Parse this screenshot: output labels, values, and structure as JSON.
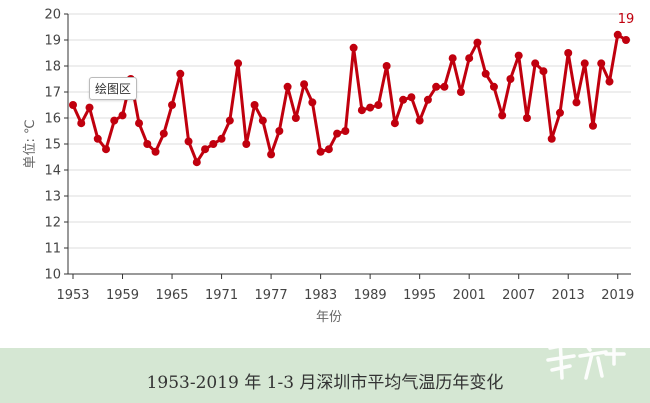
{
  "chart_data": {
    "type": "line",
    "title": "",
    "xlabel": "年份",
    "ylabel": "单位: ℃",
    "ylim": [
      10,
      20
    ],
    "yticks": [
      10,
      11,
      12,
      13,
      14,
      15,
      16,
      17,
      18,
      19,
      20
    ],
    "xticks": [
      1953,
      1959,
      1965,
      1971,
      1977,
      1983,
      1989,
      1995,
      2001,
      2007,
      2013,
      2019
    ],
    "grid": true,
    "last_value_label": "19",
    "series": [
      {
        "color": "#c0000e",
        "x": [
          1953,
          1954,
          1955,
          1956,
          1957,
          1958,
          1959,
          1960,
          1961,
          1962,
          1963,
          1964,
          1965,
          1966,
          1967,
          1968,
          1969,
          1970,
          1971,
          1972,
          1973,
          1974,
          1975,
          1976,
          1977,
          1978,
          1979,
          1980,
          1981,
          1982,
          1983,
          1984,
          1985,
          1986,
          1987,
          1988,
          1989,
          1990,
          1991,
          1992,
          1993,
          1994,
          1995,
          1996,
          1997,
          1998,
          1999,
          2000,
          2001,
          2002,
          2003,
          2004,
          2005,
          2006,
          2007,
          2008,
          2009,
          2010,
          2011,
          2012,
          2013,
          2014,
          2015,
          2016,
          2017,
          2018,
          2019,
          2020
        ],
        "values": [
          16.5,
          15.8,
          16.4,
          15.2,
          14.8,
          15.9,
          16.1,
          17.5,
          15.8,
          15.0,
          14.7,
          15.4,
          16.5,
          17.7,
          15.1,
          14.3,
          14.8,
          15.0,
          15.2,
          15.9,
          18.1,
          15.0,
          16.5,
          15.9,
          14.6,
          15.5,
          17.2,
          16.0,
          17.3,
          16.6,
          14.7,
          14.8,
          15.4,
          15.5,
          18.7,
          16.3,
          16.4,
          16.5,
          18.0,
          15.8,
          16.7,
          16.8,
          15.9,
          16.7,
          17.2,
          17.2,
          18.3,
          17.0,
          18.3,
          18.9,
          17.7,
          17.2,
          16.1,
          17.5,
          18.4,
          16.0,
          18.1,
          17.8,
          15.2,
          16.2,
          18.5,
          16.6,
          18.1,
          15.7,
          18.1,
          17.4,
          19.2,
          19.0
        ]
      }
    ]
  },
  "tooltip_text": "绘图区",
  "caption": "1953-2019 年 1-3 月深圳市平均气温历年变化",
  "colors": {
    "line": "#c0000e",
    "footer_bg": "#d5e7d3"
  }
}
